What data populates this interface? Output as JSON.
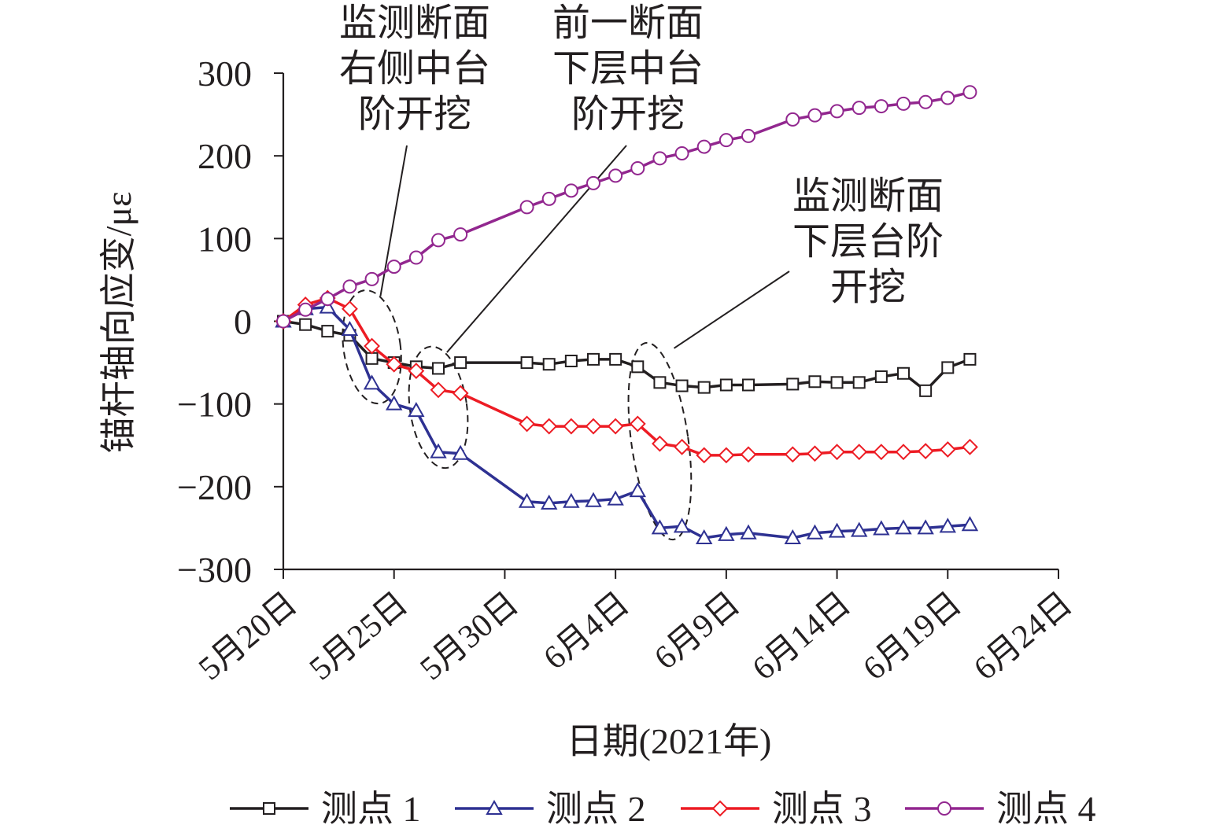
{
  "chart_data": {
    "type": "line",
    "xlabel": "日期(2021年)",
    "ylabel": "锚杆轴向应变/με",
    "ylim": [
      -300,
      300
    ],
    "yticks": [
      "300",
      "200",
      "100",
      "0",
      "−100",
      "−200",
      "−300"
    ],
    "xlim": [
      "2021-05-20",
      "2021-06-24"
    ],
    "xticks": [
      "5月20日",
      "5月25日",
      "5月30日",
      "6月4日",
      "6月9日",
      "6月14日",
      "6月19日",
      "6月24日"
    ],
    "legend_position": "bottom",
    "grid": false,
    "series": [
      {
        "name": "测点 1",
        "color": "#231f20",
        "marker": "square",
        "points": [
          [
            "2021-05-20",
            0
          ],
          [
            "2021-05-21",
            -4
          ],
          [
            "2021-05-22",
            -12
          ],
          [
            "2021-05-23",
            -17
          ],
          [
            "2021-05-24",
            -45
          ],
          [
            "2021-05-25",
            -50
          ],
          [
            "2021-05-26",
            -55
          ],
          [
            "2021-05-27",
            -57
          ],
          [
            "2021-05-28",
            -50
          ],
          [
            "2021-05-31",
            -50
          ],
          [
            "2021-06-01",
            -52
          ],
          [
            "2021-06-02",
            -48
          ],
          [
            "2021-06-03",
            -46
          ],
          [
            "2021-06-04",
            -46
          ],
          [
            "2021-06-05",
            -55
          ],
          [
            "2021-06-06",
            -74
          ],
          [
            "2021-06-07",
            -78
          ],
          [
            "2021-06-08",
            -80
          ],
          [
            "2021-06-09",
            -77
          ],
          [
            "2021-06-10",
            -77
          ],
          [
            "2021-06-12",
            -76
          ],
          [
            "2021-06-13",
            -73
          ],
          [
            "2021-06-14",
            -74
          ],
          [
            "2021-06-15",
            -74
          ],
          [
            "2021-06-16",
            -67
          ],
          [
            "2021-06-17",
            -63
          ],
          [
            "2021-06-18",
            -84
          ],
          [
            "2021-06-19",
            -56
          ],
          [
            "2021-06-20",
            -46
          ]
        ]
      },
      {
        "name": "测点 2",
        "color": "#2e3192",
        "marker": "triangle",
        "points": [
          [
            "2021-05-20",
            0
          ],
          [
            "2021-05-21",
            15
          ],
          [
            "2021-05-22",
            17
          ],
          [
            "2021-05-23",
            -10
          ],
          [
            "2021-05-24",
            -75
          ],
          [
            "2021-05-25",
            -100
          ],
          [
            "2021-05-26",
            -108
          ],
          [
            "2021-05-27",
            -158
          ],
          [
            "2021-05-28",
            -160
          ],
          [
            "2021-05-31",
            -218
          ],
          [
            "2021-06-01",
            -220
          ],
          [
            "2021-06-02",
            -218
          ],
          [
            "2021-06-03",
            -217
          ],
          [
            "2021-06-04",
            -215
          ],
          [
            "2021-06-05",
            -205
          ],
          [
            "2021-06-06",
            -250
          ],
          [
            "2021-06-07",
            -248
          ],
          [
            "2021-06-08",
            -262
          ],
          [
            "2021-06-09",
            -258
          ],
          [
            "2021-06-10",
            -256
          ],
          [
            "2021-06-12",
            -262
          ],
          [
            "2021-06-13",
            -256
          ],
          [
            "2021-06-14",
            -254
          ],
          [
            "2021-06-15",
            -253
          ],
          [
            "2021-06-16",
            -251
          ],
          [
            "2021-06-17",
            -250
          ],
          [
            "2021-06-18",
            -250
          ],
          [
            "2021-06-19",
            -248
          ],
          [
            "2021-06-20",
            -246
          ]
        ]
      },
      {
        "name": "测点 3",
        "color": "#ed1c24",
        "marker": "diamond",
        "points": [
          [
            "2021-05-20",
            0
          ],
          [
            "2021-05-21",
            20
          ],
          [
            "2021-05-22",
            28
          ],
          [
            "2021-05-23",
            15
          ],
          [
            "2021-05-24",
            -30
          ],
          [
            "2021-05-25",
            -52
          ],
          [
            "2021-05-26",
            -60
          ],
          [
            "2021-05-27",
            -83
          ],
          [
            "2021-05-28",
            -87
          ],
          [
            "2021-05-31",
            -124
          ],
          [
            "2021-06-01",
            -127
          ],
          [
            "2021-06-02",
            -127
          ],
          [
            "2021-06-03",
            -127
          ],
          [
            "2021-06-04",
            -127
          ],
          [
            "2021-06-05",
            -124
          ],
          [
            "2021-06-06",
            -148
          ],
          [
            "2021-06-07",
            -152
          ],
          [
            "2021-06-08",
            -162
          ],
          [
            "2021-06-09",
            -162
          ],
          [
            "2021-06-10",
            -161
          ],
          [
            "2021-06-12",
            -161
          ],
          [
            "2021-06-13",
            -160
          ],
          [
            "2021-06-14",
            -158
          ],
          [
            "2021-06-15",
            -158
          ],
          [
            "2021-06-16",
            -158
          ],
          [
            "2021-06-17",
            -158
          ],
          [
            "2021-06-18",
            -157
          ],
          [
            "2021-06-19",
            -155
          ],
          [
            "2021-06-20",
            -152
          ]
        ]
      },
      {
        "name": "测点 4",
        "color": "#92278f",
        "marker": "circle",
        "points": [
          [
            "2021-05-20",
            0
          ],
          [
            "2021-05-21",
            14
          ],
          [
            "2021-05-22",
            27
          ],
          [
            "2021-05-23",
            42
          ],
          [
            "2021-05-24",
            51
          ],
          [
            "2021-05-25",
            66
          ],
          [
            "2021-05-26",
            77
          ],
          [
            "2021-05-27",
            98
          ],
          [
            "2021-05-28",
            105
          ],
          [
            "2021-05-31",
            138
          ],
          [
            "2021-06-01",
            148
          ],
          [
            "2021-06-02",
            158
          ],
          [
            "2021-06-03",
            167
          ],
          [
            "2021-06-04",
            176
          ],
          [
            "2021-06-05",
            185
          ],
          [
            "2021-06-06",
            197
          ],
          [
            "2021-06-07",
            203
          ],
          [
            "2021-06-08",
            211
          ],
          [
            "2021-06-09",
            219
          ],
          [
            "2021-06-10",
            224
          ],
          [
            "2021-06-12",
            244
          ],
          [
            "2021-06-13",
            249
          ],
          [
            "2021-06-14",
            254
          ],
          [
            "2021-06-15",
            258
          ],
          [
            "2021-06-16",
            260
          ],
          [
            "2021-06-17",
            263
          ],
          [
            "2021-06-18",
            265
          ],
          [
            "2021-06-19",
            270
          ],
          [
            "2021-06-20",
            277
          ]
        ]
      }
    ],
    "annotations": [
      {
        "lines": [
          "监测断面",
          "右侧中台",
          "阶开挖"
        ],
        "region": [
          "2021-05-23",
          "2021-05-25",
          -100,
          38
        ]
      },
      {
        "lines": [
          "前一断面",
          "下层中台",
          "阶开挖"
        ],
        "region": [
          "2021-05-26",
          "2021-05-28",
          -178,
          -30
        ]
      },
      {
        "lines": [
          "监测断面",
          "下层台阶",
          "开挖"
        ],
        "region": [
          "2021-06-05",
          "2021-06-07",
          -265,
          -25
        ]
      }
    ]
  }
}
